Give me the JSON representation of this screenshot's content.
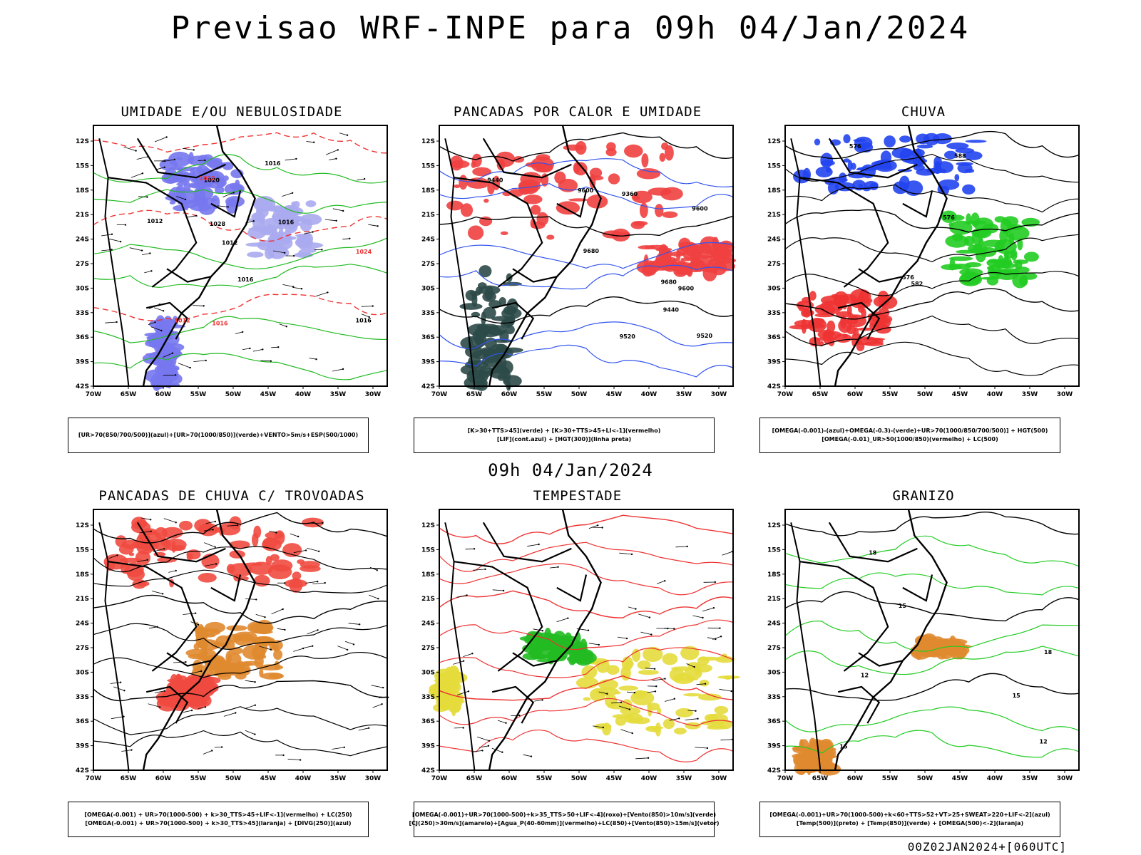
{
  "header": {
    "title": "Previsao WRF-INPE  para 09h 04/Jan/2024",
    "subtitle": "09h 04/Jan/2024",
    "run_info": "00Z02JAN2024+[060UTC]"
  },
  "axes": {
    "lat_labels": [
      "12S",
      "15S",
      "18S",
      "21S",
      "24S",
      "27S",
      "30S",
      "33S",
      "36S",
      "39S",
      "42S"
    ],
    "lon_labels": [
      "70W",
      "65W",
      "60W",
      "55W",
      "50W",
      "45W",
      "40W",
      "35W",
      "30W"
    ]
  },
  "panels": [
    {
      "title": "UMIDADE E/OU NEBULOSIDADE",
      "legend": [
        "[UR>70(850/700/500)](azul)+[UR>70(1000/850)](verde)+VENTO>5m/s+ESP(500/1000)"
      ],
      "labels": [
        "1016",
        "1012",
        "1012",
        "1012",
        "1016",
        "1016",
        "1020",
        "1024",
        "1028",
        "1016",
        "1012",
        "1016"
      ]
    },
    {
      "title": "PANCADAS POR CALOR E UMIDADE",
      "legend": [
        "[K>30+TTS>45](verde) + [K>30+TTS>45+LI<-1](vermelho)",
        "[LIF](cont.azul) + [HGT(300)](linha preta)"
      ],
      "labels": [
        "9680",
        "9680",
        "9600",
        "9600",
        "9520",
        "9440",
        "9440",
        "9360",
        "9520",
        "9600"
      ]
    },
    {
      "title": "CHUVA",
      "legend": [
        "[OMEGA(-0.001)-(azul)+OMEGA(-0.3)-(verde)+UR>70(1000/850/700/500)] + HGT(500)",
        "[OMEGA(-0.01)_UR>50(1000/850)(vermelho) + LC(500)"
      ],
      "labels": [
        "576",
        "576",
        "576",
        "582",
        "588"
      ]
    },
    {
      "title": "PANCADAS DE CHUVA C/ TROVOADAS",
      "legend": [
        "[OMEGA(-0.001) + UR>70(1000-500) + k>30_TTS>45+LIF<-1](vermelho) + LC(250)",
        "[OMEGA(-0.001) + UR>70(1000-500) + k>30_TTS>45](laranja) + [DIVG(250)](azul)"
      ],
      "labels": []
    },
    {
      "title": "TEMPESTADE",
      "legend": [
        "[OMEGA(-0.001)+UR>70(1000-500)+k>35_TTS>50+LIF<-4](roxo)+[Vento(850)>10m/s](verde)",
        "[CJ(250)>30m/s](amarelo)+[Agua_P(40-60mm)](vermelho)+LC(850)+[Vento(850)>15m/s](vetor)"
      ],
      "labels": []
    },
    {
      "title": "GRANIZO",
      "legend": [
        "[OMEGA(-0.001)+UR>70(1000-500)+k<60+TTS>52+VT>25+SWEAT>220+LIF<-2](azul)",
        "[Temp(500)](preto) + [Temp(850)](verde) + [OMEGA(500)<-2](laranja)"
      ],
      "labels": [
        "12",
        "12",
        "15",
        "15",
        "15",
        "18",
        "18"
      ]
    }
  ]
}
